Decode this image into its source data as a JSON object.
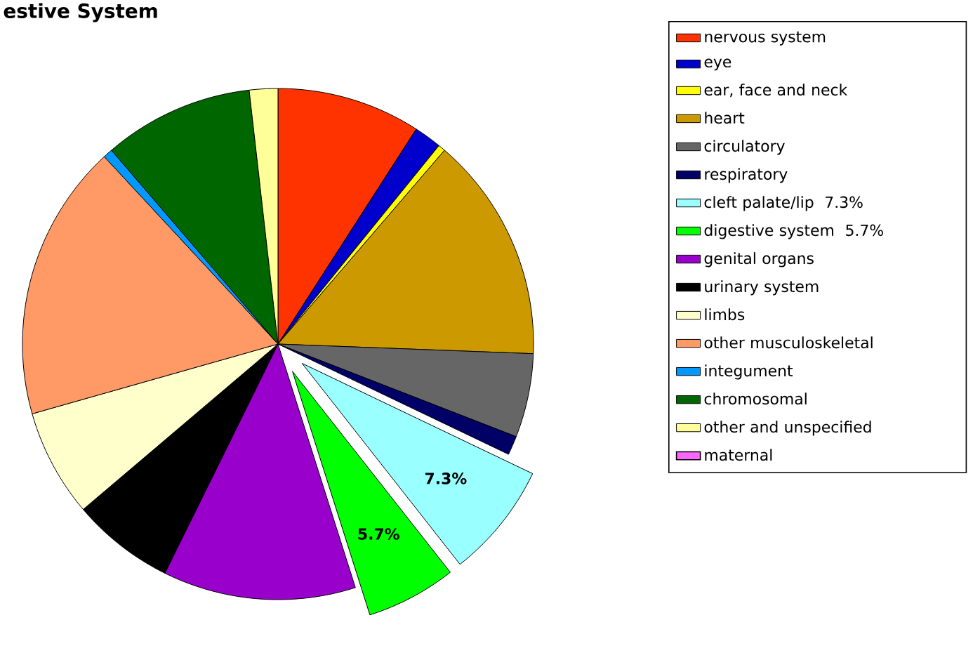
{
  "chart_data": {
    "type": "pie",
    "title": "estive System",
    "categories": [
      "nervous system",
      "eye",
      "ear, face and neck",
      "heart",
      "circulatory",
      "respiratory",
      "cleft palate/lip",
      "digestive system",
      "genital organs",
      "urinary system",
      "limbs",
      "other musculoskeletal",
      "integument",
      "chromosomal",
      "other and unspecified",
      "maternal"
    ],
    "values": [
      9.1,
      1.75,
      0.45,
      14.3,
      5.3,
      1.2,
      7.3,
      5.7,
      12.2,
      6.5,
      6.8,
      17.5,
      0.6,
      9.5,
      1.8,
      0
    ],
    "value_labels": [
      null,
      null,
      null,
      null,
      null,
      null,
      "7.3%",
      "5.7%",
      null,
      null,
      null,
      null,
      null,
      null,
      null,
      null
    ],
    "colors": [
      "#ff3300",
      "#0000cc",
      "#ffff00",
      "#cc9900",
      "#666666",
      "#000066",
      "#99ffff",
      "#00ff00",
      "#9900cc",
      "#000000",
      "#ffffcc",
      "#ff9966",
      "#0099ff",
      "#006600",
      "#ffff99",
      "#ff66ff"
    ],
    "legend": "right"
  }
}
